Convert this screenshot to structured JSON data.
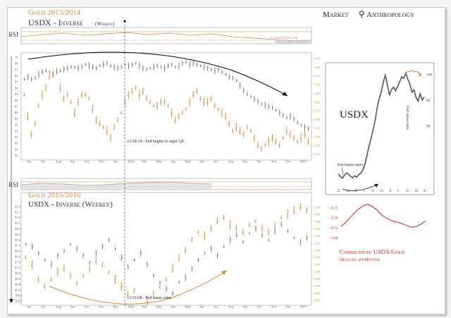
{
  "header": {
    "title_top": "Gold 2013/2014",
    "subtitle_top": "USDX - Inverse",
    "subtitle_top_small": "(Weekly)",
    "brand_left": "Market",
    "brand_right": "Anthropology",
    "watermark": "© StockCharts.com"
  },
  "colors": {
    "gold": "#d98a3c",
    "usdx": "#7a7a7a",
    "correlation": "#c0251c",
    "arrow_black": "#000000",
    "frame": "#aaaaaa"
  },
  "chart_data": [
    {
      "type": "line",
      "name": "top-panel",
      "title": "Gold 2013/2014",
      "subtitle": "USDX - Inverse (Weekly)",
      "indicator_label": "RSI",
      "x_tick_labels": [
        "Jun",
        "Jul",
        "Aug",
        "Sep",
        "Oct",
        "Nov",
        "Dec",
        "2014",
        "Feb",
        "Mar",
        "Apr",
        "May",
        "Jun",
        "Jul",
        "Aug",
        "Sep",
        "Oct",
        "Nov",
        "Dec",
        "2015"
      ],
      "y_left_ticks": [
        "79",
        "80",
        "81",
        "82",
        "83",
        "84",
        "85",
        "86",
        "87",
        "88",
        "89",
        "90",
        "91",
        "92",
        "93",
        "94",
        "95"
      ],
      "y_right_ticks": [
        "1425",
        "1400",
        "1375",
        "1350",
        "1325",
        "1300",
        "1275",
        "1250",
        "1225",
        "1200",
        "1175",
        "1150"
      ],
      "ylim_left": [
        79,
        95
      ],
      "ylim_right": [
        1150,
        1425
      ],
      "annotation": "12/18/14 - Fed begins to taper QE",
      "series": [
        {
          "name": "USDX inverse",
          "color": "gray",
          "values": [
            82.6,
            82.2,
            82.6,
            82.4,
            81.8,
            81.4,
            81.2,
            81.4,
            81.8,
            81.4,
            81.2,
            81.0,
            80.8,
            80.6,
            80.6,
            80.8,
            80.6,
            80.2,
            80.4,
            80.6,
            80.8,
            80.4,
            80.2,
            80.0,
            80.4,
            80.6,
            80.8,
            80.6,
            80.2,
            80.4,
            80.2,
            80.0,
            80.4,
            80.8,
            81.0,
            80.8,
            80.6,
            80.4,
            80.6,
            80.8,
            80.4,
            80.2,
            80.6,
            80.4,
            80.0,
            79.8,
            80.2,
            80.0,
            80.2,
            80.4,
            80.6,
            80.8,
            81.0,
            81.2,
            81.0,
            81.4,
            81.8,
            82.2,
            82.4,
            82.8,
            83.6,
            84.4,
            85.0,
            85.4,
            85.8,
            86.2,
            86.6,
            86.8,
            87.0,
            87.2,
            87.6,
            88.0,
            88.4,
            88.8,
            88.6,
            89.0,
            89.6,
            90.0,
            90.4,
            90.6
          ]
        },
        {
          "name": "Gold",
          "color": "orange",
          "values": [
            1320,
            1260,
            1210,
            1240,
            1290,
            1320,
            1340,
            1370,
            1380,
            1390,
            1340,
            1310,
            1320,
            1300,
            1270,
            1300,
            1320,
            1320,
            1310,
            1280,
            1250,
            1240,
            1230,
            1220,
            1200,
            1230,
            1250,
            1270,
            1300,
            1320,
            1330,
            1340,
            1320,
            1330,
            1310,
            1300,
            1290,
            1290,
            1300,
            1300,
            1290,
            1270,
            1250,
            1260,
            1270,
            1280,
            1300,
            1320,
            1330,
            1310,
            1300,
            1300,
            1310,
            1290,
            1280,
            1270,
            1260,
            1240,
            1220,
            1230,
            1220,
            1210,
            1230,
            1220,
            1200,
            1180,
            1170,
            1180,
            1190,
            1200,
            1190,
            1180,
            1200,
            1220,
            1210,
            1200,
            1190,
            1200,
            1210,
            1190
          ]
        }
      ]
    },
    {
      "type": "line",
      "name": "bottom-panel",
      "title": "Gold 2015/2016",
      "subtitle": "USDX - Inverse (Weekly)",
      "indicator_label": "RSI",
      "x_tick_labels": [
        "Jun",
        "Jul",
        "Aug",
        "Sep",
        "Oct",
        "Nov",
        "Dec",
        "2016",
        "Feb",
        "Mar",
        "Apr",
        "May",
        "Jun",
        "Jul",
        "Aug",
        "Sep",
        "Oct",
        "Nov",
        "Dec",
        "2017"
      ],
      "y_left_ticks": [
        "92.0",
        "92.5",
        "93.0",
        "93.5",
        "94.0",
        "94.5",
        "95.0",
        "95.5",
        "96.0",
        "96.5",
        "97.0",
        "97.5",
        "98.0",
        "98.5",
        "99.0",
        "99.5",
        "100.0",
        "100.5"
      ],
      "y_right_ticks": [
        "1320",
        "1300",
        "1280",
        "1260",
        "1240",
        "1220",
        "1200",
        "1180",
        "1160",
        "1140",
        "1120",
        "1100",
        "1080",
        "1060"
      ],
      "ylim_left": [
        92,
        100.5
      ],
      "ylim_right": [
        1060,
        1320
      ],
      "annotation": "12/16/15 - Fed raises rates",
      "series": [
        {
          "name": "USDX inverse",
          "color": "gray",
          "values": [
            95.4,
            95.6,
            96.2,
            96.8,
            97.2,
            96.4,
            96.0,
            95.4,
            95.8,
            96.4,
            97.0,
            96.2,
            95.6,
            95.0,
            95.8,
            96.6,
            97.4,
            96.8,
            96.2,
            97.2,
            98.2,
            98.8,
            99.4,
            99.8,
            98.8,
            98.4,
            97.6,
            96.8,
            96.2,
            95.8,
            96.4,
            95.6,
            95.0,
            94.6,
            95.2,
            94.4,
            94.0,
            94.6,
            95.0,
            94.2,
            93.6,
            94.2,
            94.8,
            95.2,
            94.8
          ]
        },
        {
          "name": "Gold",
          "color": "orange",
          "values": [
            1180,
            1160,
            1120,
            1100,
            1120,
            1140,
            1150,
            1130,
            1110,
            1130,
            1150,
            1170,
            1160,
            1140,
            1120,
            1100,
            1080,
            1090,
            1070,
            1060,
            1080,
            1100,
            1120,
            1150,
            1180,
            1200,
            1230,
            1250,
            1240,
            1260,
            1280,
            1290,
            1270,
            1260,
            1250,
            1270,
            1280,
            1260,
            1250,
            1270,
            1290,
            1300,
            1310,
            1320,
            1310
          ]
        }
      ]
    },
    {
      "type": "line",
      "name": "usdx-inset",
      "title": "USDX",
      "x_tick_labels": [
        "O",
        "14",
        "A",
        "J",
        "O",
        "15",
        "A",
        "J",
        "O",
        "16",
        "A"
      ],
      "y_ticks": [
        "100",
        "95",
        "90"
      ],
      "ylim": [
        78,
        101
      ],
      "annotations": [
        "Fed begins taper",
        "Fed raises rates"
      ],
      "values": [
        80.6,
        80.2,
        79.8,
        80.4,
        80.8,
        80.6,
        80.2,
        79.9,
        80.3,
        80.0,
        80.5,
        80.8,
        81.4,
        82.5,
        84.2,
        86.0,
        87.5,
        89.2,
        91.0,
        93.5,
        95.3,
        96.5,
        98.5,
        99.8,
        98.0,
        96.0,
        97.0,
        97.5,
        96.8,
        97.6,
        98.5,
        99.5,
        99.2,
        100.2,
        99.0,
        98.1,
        96.5,
        97.0,
        95.5,
        94.8,
        96.2,
        95.0,
        95.6
      ]
    },
    {
      "type": "line",
      "name": "correlation-inset",
      "title": "Correlation: USDX/Gold",
      "subtitle": "(Rolling 24 Month)",
      "y_ticks": [
        "-0.25",
        "-0.50",
        "-0.75",
        "-1.00"
      ],
      "ylim": [
        -1.05,
        -0.05
      ],
      "values": [
        -0.72,
        -0.62,
        -0.5,
        -0.38,
        -0.28,
        -0.2,
        -0.17,
        -0.22,
        -0.3,
        -0.42,
        -0.5,
        -0.56,
        -0.6,
        -0.62,
        -0.66,
        -0.71,
        -0.74,
        -0.72,
        -0.66,
        -0.58
      ]
    }
  ]
}
